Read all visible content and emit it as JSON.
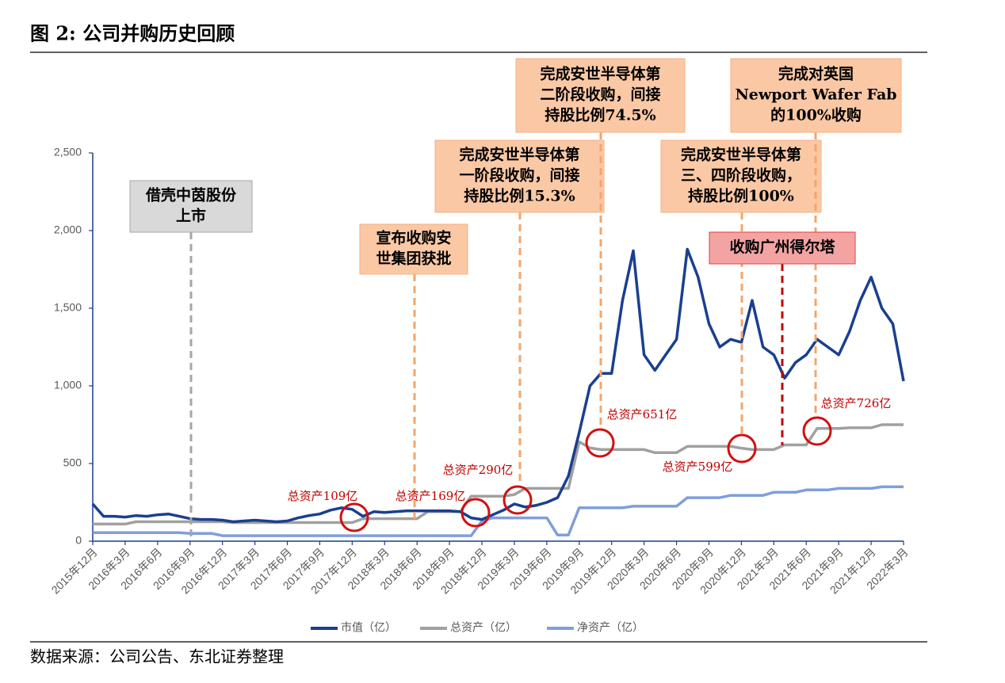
{
  "chart_data": {
    "type": "line",
    "title": "图 2:  公司并购历史回顾",
    "source": "数据来源：公司公告、东北证券整理",
    "categories": [
      "2015年12月",
      null,
      null,
      "2016年3月",
      null,
      null,
      "2016年6月",
      null,
      null,
      "2016年9月",
      null,
      null,
      "2016年12月",
      null,
      null,
      "2017年3月",
      null,
      null,
      "2017年6月",
      null,
      null,
      "2017年9月",
      null,
      null,
      "2017年12月",
      null,
      null,
      "2018年3月",
      null,
      null,
      "2018年6月",
      null,
      null,
      "2018年9月",
      null,
      null,
      "2018年12月",
      null,
      null,
      "2019年3月",
      null,
      null,
      "2019年6月",
      null,
      null,
      "2019年9月",
      null,
      null,
      "2019年12月",
      null,
      null,
      "2020年3月",
      null,
      null,
      "2020年6月",
      null,
      null,
      "2020年9月",
      null,
      null,
      "2020年12月",
      null,
      null,
      "2021年3月",
      null,
      null,
      "2021年6月",
      null,
      null,
      "2021年9月",
      null,
      null,
      "2021年12月",
      null,
      null,
      "2022年3月"
    ],
    "series": [
      {
        "name": "市值（亿）",
        "color": "#1b3f8f",
        "width": 3.5,
        "values": [
          240,
          160,
          160,
          155,
          165,
          160,
          170,
          175,
          160,
          145,
          140,
          140,
          135,
          125,
          130,
          135,
          130,
          125,
          130,
          150,
          165,
          175,
          200,
          215,
          205,
          160,
          190,
          185,
          190,
          195,
          195,
          195,
          195,
          195,
          190,
          150,
          140,
          170,
          200,
          240,
          220,
          230,
          250,
          280,
          420,
          700,
          1000,
          1080,
          1080,
          1550,
          1870,
          1200,
          1100,
          1200,
          1300,
          1880,
          1700,
          1400,
          1250,
          1300,
          1280,
          1550,
          1250,
          1200,
          1050,
          1150,
          1200,
          1300,
          1250,
          1200,
          1350,
          1550,
          1700,
          1500,
          1400,
          1030
        ]
      },
      {
        "name": "总资产（亿）",
        "color": "#a0a0a0",
        "width": 3.5,
        "values": [
          110,
          110,
          110,
          110,
          125,
          125,
          125,
          125,
          125,
          125,
          125,
          125,
          125,
          120,
          120,
          120,
          120,
          120,
          120,
          120,
          120,
          120,
          120,
          120,
          120,
          145,
          145,
          145,
          145,
          145,
          145,
          190,
          190,
          190,
          190,
          290,
          290,
          290,
          290,
          300,
          340,
          340,
          340,
          340,
          340,
          640,
          600,
          590,
          590,
          590,
          590,
          590,
          570,
          570,
          570,
          610,
          610,
          610,
          610,
          610,
          599,
          590,
          590,
          590,
          620,
          620,
          620,
          726,
          726,
          726,
          730,
          730,
          730,
          750,
          750,
          750
        ]
      },
      {
        "name": "净资产（亿）",
        "color": "#7f9edc",
        "width": 3.5,
        "values": [
          55,
          55,
          55,
          55,
          55,
          55,
          55,
          55,
          55,
          50,
          50,
          50,
          35,
          35,
          35,
          35,
          35,
          35,
          35,
          35,
          35,
          35,
          35,
          35,
          35,
          35,
          35,
          35,
          35,
          35,
          35,
          35,
          35,
          35,
          35,
          35,
          130,
          150,
          150,
          150,
          150,
          150,
          150,
          40,
          40,
          215,
          215,
          215,
          215,
          215,
          225,
          225,
          225,
          225,
          225,
          280,
          280,
          280,
          280,
          295,
          295,
          295,
          295,
          315,
          315,
          315,
          330,
          330,
          330,
          340,
          340,
          340,
          340,
          350,
          350,
          350
        ]
      }
    ],
    "ylim": [
      0,
      2500
    ],
    "yticks": [
      0,
      500,
      {
        "value": 1000,
        "label": "1,000"
      },
      {
        "value": 1500,
        "label": "1,500"
      },
      {
        "value": 2000,
        "label": "2,000"
      },
      {
        "value": 2500,
        "label": "2,500"
      }
    ],
    "annotations": [
      {
        "lines": [
          "借壳中茵股份",
          "上市"
        ]
      },
      {
        "lines": [
          "宣布收购安",
          "世集团获批"
        ]
      },
      {
        "lines": [
          "完成安世半导体第",
          "一阶段收购，间接",
          "持股比例15.3%"
        ]
      },
      {
        "lines": [
          "完成安世半导体第",
          "二阶段收购，间接",
          "持股比例74.5%"
        ]
      },
      {
        "lines": [
          "完成安世半导体第",
          "三、四阶段收购，",
          "持股比例100%"
        ]
      },
      {
        "lines": [
          "完成对英国",
          "Newport Wafer Fab",
          "的100%收购"
        ]
      },
      {
        "lines": [
          "收购广州得尔塔"
        ]
      }
    ],
    "callouts": [
      "总资产109亿",
      "总资产169亿",
      "总资产290亿",
      "总资产651亿",
      "总资产599亿",
      "总资产726亿"
    ]
  }
}
